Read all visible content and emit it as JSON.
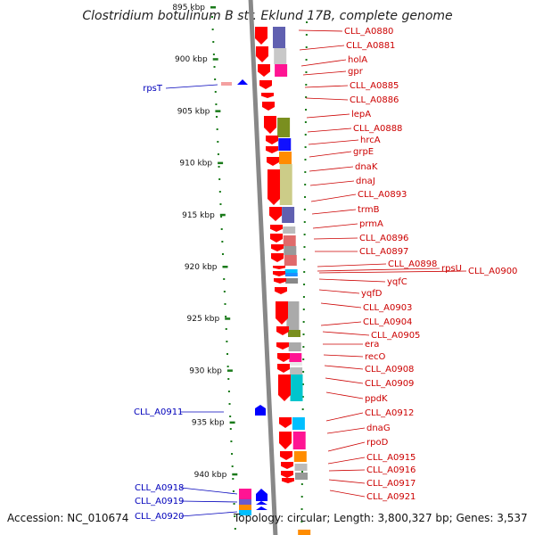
{
  "header": {
    "title": "Clostridium botulinum B str. Eklund 17B, complete genome"
  },
  "footer": {
    "accession": "Accession: NC_010674",
    "summary": "Topology: circular; Length: 3,800,327 bp; Genes: 3,537"
  },
  "axis": {
    "ticks": [
      "895 kbp",
      "900 kbp",
      "905 kbp",
      "910 kbp",
      "915 kbp",
      "920 kbp",
      "925 kbp",
      "930 kbp",
      "935 kbp",
      "940 kbp"
    ]
  },
  "genes_forward": [
    {
      "name": "CLL_A0880"
    },
    {
      "name": "CLL_A0881"
    },
    {
      "name": "holA"
    },
    {
      "name": "gpr"
    },
    {
      "name": "CLL_A0885"
    },
    {
      "name": "CLL_A0886"
    },
    {
      "name": "lepA"
    },
    {
      "name": "CLL_A0888"
    },
    {
      "name": "hrcA"
    },
    {
      "name": "grpE"
    },
    {
      "name": "dnaK"
    },
    {
      "name": "dnaJ"
    },
    {
      "name": "CLL_A0893"
    },
    {
      "name": "trmB"
    },
    {
      "name": "prmA"
    },
    {
      "name": "CLL_A0896"
    },
    {
      "name": "CLL_A0897"
    },
    {
      "name": "CLL_A0898"
    },
    {
      "name": "rpsU"
    },
    {
      "name": "CLL_A0900"
    },
    {
      "name": "yqfC"
    },
    {
      "name": "yqfD"
    },
    {
      "name": "CLL_A0903"
    },
    {
      "name": "CLL_A0904"
    },
    {
      "name": "CLL_A0905"
    },
    {
      "name": "era"
    },
    {
      "name": "recO"
    },
    {
      "name": "CLL_A0908"
    },
    {
      "name": "CLL_A0909"
    },
    {
      "name": "ppdK"
    },
    {
      "name": "CLL_A0912"
    },
    {
      "name": "dnaG"
    },
    {
      "name": "rpoD"
    },
    {
      "name": "CLL_A0915"
    },
    {
      "name": "CLL_A0916"
    },
    {
      "name": "CLL_A0917"
    },
    {
      "name": "CLL_A0921"
    }
  ],
  "genes_reverse": [
    {
      "name": "rpsT"
    },
    {
      "name": "CLL_A0911"
    },
    {
      "name": "CLL_A0918"
    },
    {
      "name": "CLL_A0919"
    },
    {
      "name": "CLL_A0920"
    }
  ],
  "colors": {
    "forward_gene": "#ff0000",
    "reverse_gene": "#0000ff",
    "forward_label": "#cc0000",
    "reverse_label": "#0000bb",
    "backbone": "#888888",
    "tick_marks": "#1a7a1a"
  }
}
